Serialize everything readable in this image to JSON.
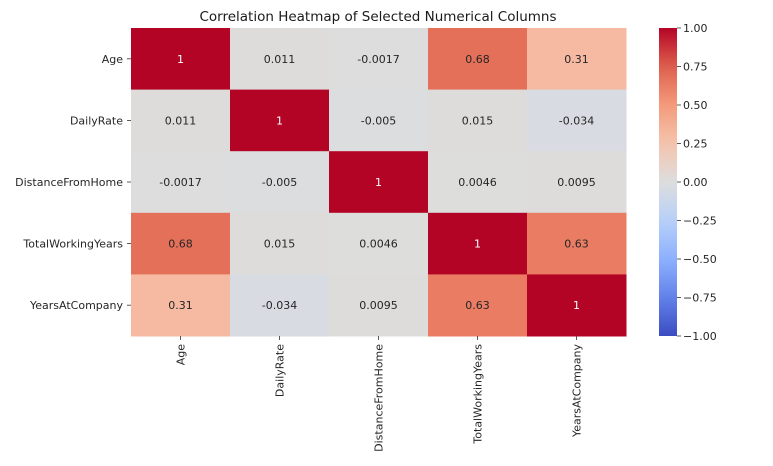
{
  "chart_data": {
    "type": "heatmap",
    "title": "Correlation Heatmap of Selected Numerical Columns",
    "x_categories": [
      "Age",
      "DailyRate",
      "DistanceFromHome",
      "TotalWorkingYears",
      "YearsAtCompany"
    ],
    "y_categories": [
      "Age",
      "DailyRate",
      "DistanceFromHome",
      "TotalWorkingYears",
      "YearsAtCompany"
    ],
    "values": [
      [
        1,
        0.011,
        -0.0017,
        0.68,
        0.31
      ],
      [
        0.011,
        1,
        -0.005,
        0.015,
        -0.034
      ],
      [
        -0.0017,
        -0.005,
        1,
        0.0046,
        0.0095
      ],
      [
        0.68,
        0.015,
        0.0046,
        1,
        0.63
      ],
      [
        0.31,
        -0.034,
        0.0095,
        0.63,
        1
      ]
    ],
    "colormap": "coolwarm",
    "vmin": -1.0,
    "vmax": 1.0,
    "colorbar_ticks": [
      "1.00",
      "0.75",
      "0.50",
      "0.25",
      "0.00",
      "−0.25",
      "−0.50",
      "−0.75",
      "−1.00"
    ],
    "colorbar_tick_values": [
      1.0,
      0.75,
      0.5,
      0.25,
      0.0,
      -0.25,
      -0.5,
      -0.75,
      -1.0
    ],
    "annotations": true
  }
}
